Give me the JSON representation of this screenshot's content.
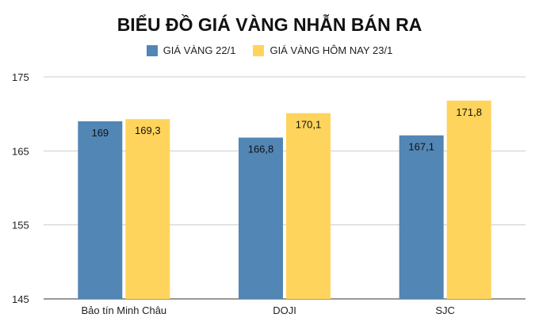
{
  "chart_data": {
    "type": "bar",
    "title": "BIỂU ĐỒ GIÁ VÀNG NHẪN BÁN RA",
    "xlabel": "",
    "ylabel": "",
    "categories": [
      "Bảo tín Minh Châu",
      "DOJI",
      "SJC"
    ],
    "series": [
      {
        "name": "GIÁ VÀNG 22/1",
        "color": "#5286b4",
        "values": [
          169,
          166.8,
          167.1
        ],
        "labels": [
          "169",
          "166,8",
          "167,1"
        ]
      },
      {
        "name": "GIÁ VÀNG HÔM NAY 23/1",
        "color": "#ffd45c",
        "values": [
          169.3,
          170.1,
          171.8
        ],
        "labels": [
          "169,3",
          "170,1",
          "171,8"
        ]
      }
    ],
    "ylim": [
      145,
      175
    ],
    "yticks": [
      145,
      155,
      165,
      175
    ],
    "grid": true,
    "legend_position": "top-center"
  }
}
